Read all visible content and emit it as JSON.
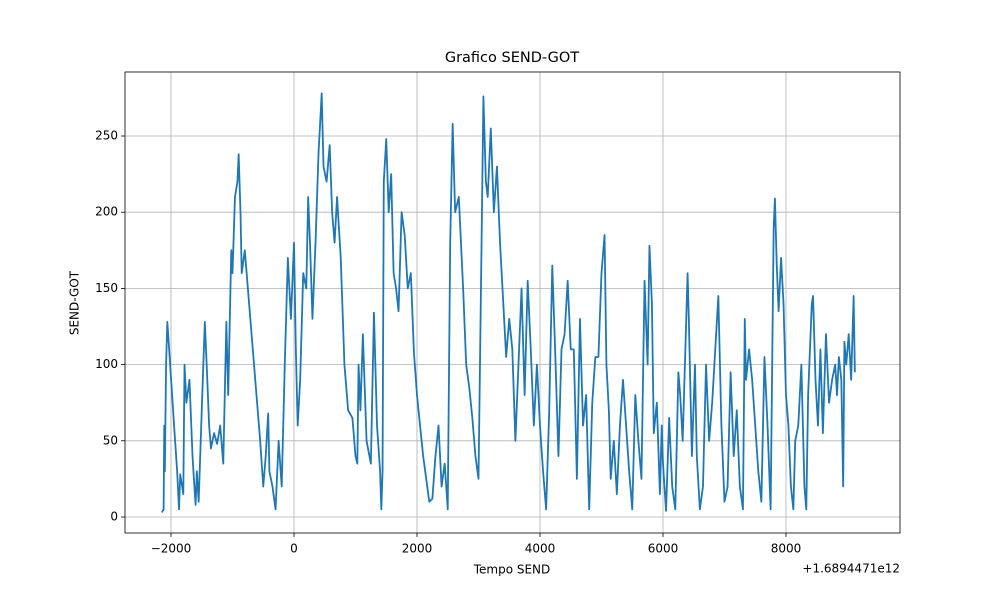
{
  "chart_data": {
    "type": "line",
    "title": "Grafico SEND-GOT",
    "xlabel": "Tempo SEND",
    "ylabel": "SEND-GOT",
    "x_offset_label": "+1.6894471e12",
    "color": "#1f77b4",
    "grid": true,
    "xlim": [
      -2748,
      9854
    ],
    "ylim": [
      -10.5,
      292
    ],
    "xticks": [
      {
        "value": -2000,
        "label": "−2000"
      },
      0,
      2000,
      4000,
      6000,
      8000
    ],
    "yticks": [
      0,
      50,
      100,
      150,
      200,
      250
    ],
    "x": [
      -2150,
      -2120,
      -2110,
      -2100,
      -2080,
      -2060,
      -2030,
      -1950,
      -1900,
      -1870,
      -1850,
      -1800,
      -1780,
      -1750,
      -1700,
      -1650,
      -1620,
      -1600,
      -1580,
      -1550,
      -1500,
      -1450,
      -1420,
      -1380,
      -1350,
      -1300,
      -1250,
      -1200,
      -1150,
      -1100,
      -1070,
      -1020,
      -1000,
      -960,
      -920,
      -900,
      -870,
      -850,
      -800,
      -750,
      -650,
      -550,
      -500,
      -460,
      -420,
      -400,
      -350,
      -300,
      -250,
      -200,
      -150,
      -100,
      -50,
      0,
      30,
      60,
      100,
      150,
      200,
      230,
      260,
      300,
      350,
      400,
      430,
      450,
      480,
      530,
      580,
      620,
      660,
      700,
      760,
      820,
      880,
      950,
      1000,
      1030,
      1050,
      1080,
      1120,
      1180,
      1250,
      1300,
      1350,
      1400,
      1420,
      1440,
      1460,
      1500,
      1540,
      1580,
      1620,
      1660,
      1700,
      1750,
      1800,
      1850,
      1900,
      1950,
      2000,
      2100,
      2200,
      2250,
      2300,
      2350,
      2400,
      2450,
      2500,
      2540,
      2580,
      2620,
      2680,
      2750,
      2800,
      2850,
      2900,
      2950,
      3000,
      3050,
      3080,
      3120,
      3150,
      3200,
      3250,
      3300,
      3350,
      3450,
      3500,
      3550,
      3600,
      3650,
      3700,
      3750,
      3800,
      3850,
      3900,
      3950,
      4000,
      4050,
      4100,
      4150,
      4200,
      4250,
      4300,
      4350,
      4400,
      4450,
      4500,
      4550,
      4600,
      4650,
      4700,
      4750,
      4800,
      4850,
      4900,
      4950,
      5000,
      5050,
      5080,
      5120,
      5150,
      5200,
      5250,
      5300,
      5350,
      5400,
      5450,
      5500,
      5550,
      5600,
      5650,
      5700,
      5750,
      5780,
      5820,
      5850,
      5900,
      5950,
      5980,
      6000,
      6050,
      6100,
      6150,
      6200,
      6250,
      6280,
      6320,
      6400,
      6420,
      6470,
      6520,
      6550,
      6600,
      6650,
      6700,
      6750,
      6800,
      6850,
      6900,
      6950,
      7000,
      7050,
      7100,
      7150,
      7200,
      7250,
      7300,
      7330,
      7350,
      7400,
      7450,
      7500,
      7550,
      7600,
      7650,
      7700,
      7750,
      7800,
      7820,
      7850,
      7880,
      7920,
      7960,
      8000,
      8040,
      8080,
      8120,
      8150,
      8200,
      8250,
      8300,
      8330,
      8360,
      8420,
      8440,
      8480,
      8520,
      8560,
      8600,
      8650,
      8700,
      8750,
      8800,
      8830,
      8860,
      8900,
      8930,
      8950,
      8980,
      9020,
      9060,
      9100,
      9120
    ],
    "values": [
      3,
      5,
      60,
      30,
      100,
      128,
      110,
      60,
      30,
      5,
      28,
      15,
      100,
      75,
      90,
      40,
      20,
      8,
      30,
      10,
      70,
      128,
      100,
      60,
      45,
      55,
      48,
      60,
      35,
      128,
      80,
      175,
      160,
      210,
      220,
      238,
      200,
      160,
      175,
      150,
      100,
      50,
      20,
      40,
      68,
      30,
      20,
      5,
      50,
      20,
      100,
      170,
      130,
      180,
      110,
      60,
      90,
      160,
      150,
      210,
      180,
      130,
      180,
      240,
      262,
      278,
      230,
      220,
      244,
      200,
      180,
      210,
      170,
      100,
      70,
      65,
      40,
      35,
      100,
      70,
      120,
      50,
      35,
      134,
      60,
      30,
      5,
      30,
      220,
      248,
      200,
      225,
      160,
      150,
      135,
      200,
      185,
      150,
      160,
      108,
      80,
      40,
      10,
      12,
      40,
      60,
      20,
      35,
      5,
      180,
      258,
      200,
      210,
      150,
      100,
      85,
      65,
      40,
      25,
      180,
      276,
      220,
      210,
      255,
      200,
      230,
      180,
      105,
      130,
      110,
      50,
      100,
      150,
      80,
      155,
      110,
      60,
      100,
      60,
      30,
      5,
      70,
      165,
      105,
      40,
      110,
      120,
      155,
      110,
      110,
      25,
      130,
      60,
      80,
      5,
      75,
      105,
      105,
      160,
      185,
      100,
      70,
      25,
      50,
      15,
      60,
      90,
      60,
      30,
      5,
      80,
      50,
      25,
      155,
      100,
      178,
      140,
      55,
      75,
      15,
      60,
      35,
      4,
      65,
      20,
      5,
      95,
      80,
      50,
      160,
      130,
      40,
      100,
      40,
      5,
      20,
      100,
      50,
      75,
      110,
      145,
      60,
      10,
      20,
      95,
      40,
      70,
      20,
      5,
      130,
      90,
      110,
      90,
      60,
      30,
      10,
      105,
      60,
      5,
      190,
      209,
      165,
      135,
      170,
      140,
      80,
      60,
      20,
      5,
      50,
      60,
      100,
      20,
      5,
      80,
      140,
      145,
      90,
      60,
      110,
      55,
      120,
      75,
      90,
      100,
      80,
      105,
      90,
      20,
      115,
      100,
      120,
      90,
      145,
      95
    ]
  }
}
